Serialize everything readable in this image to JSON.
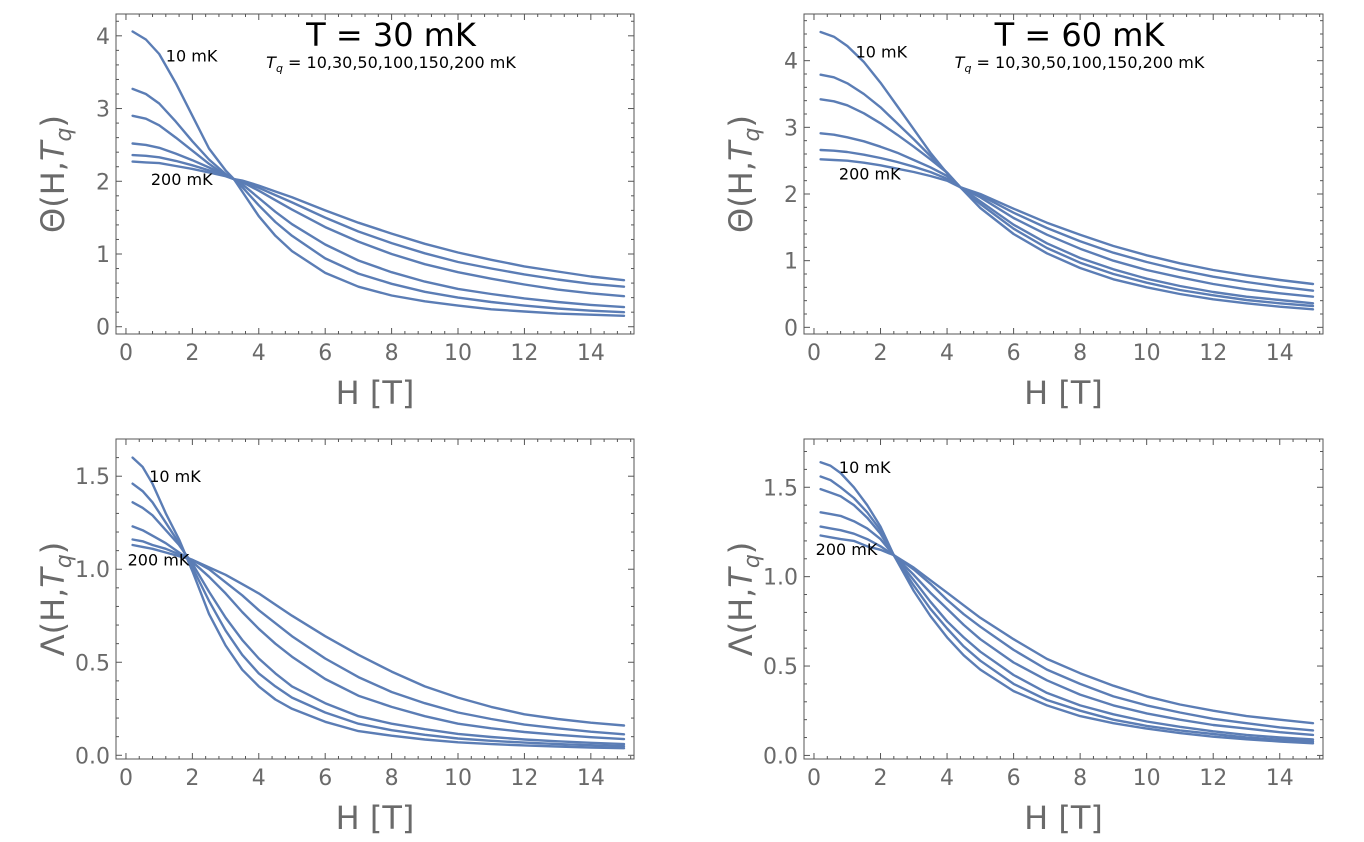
{
  "colors": {
    "series": "#5b7db5",
    "axis": "#555555",
    "tick_text": "#6a6a6a"
  },
  "chart_data": [
    {
      "type": "line",
      "title": "T = 30 mK",
      "subtitle_symbol": "T",
      "subtitle_sub": "q",
      "subtitle_rest": " = 10,30,50,100,150,200 mK",
      "xlabel": "H [T]",
      "ylabel": {
        "main": "Θ(H,",
        "italic": "T",
        "sub": "q",
        "close": ")"
      },
      "xlim": [
        -0.3,
        15.3
      ],
      "ylim": [
        -0.1,
        4.3
      ],
      "xticks": [
        0,
        2,
        4,
        6,
        8,
        10,
        12,
        14
      ],
      "yticks": [
        0,
        1,
        2,
        3,
        4
      ],
      "annotations": [
        {
          "text": "10 mK",
          "x": 1.2,
          "y": 3.65
        },
        {
          "text": "200 mK",
          "x": 0.75,
          "y": 1.95
        }
      ],
      "x": [
        0.2,
        0.6,
        1,
        1.5,
        2,
        2.5,
        3,
        3.25,
        3.5,
        4,
        4.5,
        5,
        6,
        7,
        8,
        9,
        10,
        11,
        12,
        13,
        14,
        15
      ],
      "series": [
        {
          "name": "10 mK",
          "values": [
            4.06,
            3.95,
            3.75,
            3.35,
            2.9,
            2.45,
            2.15,
            2.03,
            1.86,
            1.52,
            1.25,
            1.04,
            0.74,
            0.55,
            0.43,
            0.35,
            0.29,
            0.24,
            0.21,
            0.18,
            0.165,
            0.15
          ]
        },
        {
          "name": "30 mK",
          "values": [
            3.27,
            3.2,
            3.07,
            2.82,
            2.55,
            2.3,
            2.1,
            2.03,
            1.92,
            1.67,
            1.44,
            1.25,
            0.94,
            0.73,
            0.59,
            0.48,
            0.4,
            0.34,
            0.29,
            0.25,
            0.22,
            0.2
          ]
        },
        {
          "name": "50 mK",
          "values": [
            2.9,
            2.86,
            2.77,
            2.6,
            2.42,
            2.24,
            2.08,
            2.03,
            1.96,
            1.77,
            1.58,
            1.41,
            1.13,
            0.91,
            0.75,
            0.62,
            0.52,
            0.45,
            0.39,
            0.34,
            0.3,
            0.27
          ]
        },
        {
          "name": "100 mK",
          "values": [
            2.52,
            2.5,
            2.46,
            2.38,
            2.29,
            2.19,
            2.08,
            2.03,
            1.99,
            1.87,
            1.74,
            1.61,
            1.37,
            1.17,
            1,
            0.86,
            0.75,
            0.66,
            0.58,
            0.51,
            0.46,
            0.42
          ]
        },
        {
          "name": "150 mK",
          "values": [
            2.36,
            2.35,
            2.33,
            2.28,
            2.22,
            2.15,
            2.08,
            2.03,
            2,
            1.91,
            1.81,
            1.71,
            1.5,
            1.31,
            1.15,
            1.01,
            0.89,
            0.8,
            0.72,
            0.65,
            0.59,
            0.55
          ]
        },
        {
          "name": "200 mK",
          "values": [
            2.27,
            2.26,
            2.25,
            2.21,
            2.17,
            2.12,
            2.07,
            2.03,
            2.01,
            1.94,
            1.86,
            1.78,
            1.6,
            1.43,
            1.28,
            1.14,
            1.02,
            0.92,
            0.83,
            0.76,
            0.69,
            0.64
          ]
        }
      ]
    },
    {
      "type": "line",
      "title": "T = 60 mK",
      "subtitle_symbol": "T",
      "subtitle_sub": "q",
      "subtitle_rest": " = 10,30,50,100,150,200 mK",
      "xlabel": "H [T]",
      "ylabel": {
        "main": "Θ(H,",
        "italic": "T",
        "sub": "q",
        "close": ")"
      },
      "xlim": [
        -0.3,
        15.3
      ],
      "ylim": [
        -0.1,
        4.7
      ],
      "xticks": [
        0,
        2,
        4,
        6,
        8,
        10,
        12,
        14
      ],
      "yticks": [
        0,
        1,
        2,
        3,
        4
      ],
      "annotations": [
        {
          "text": "10 mK",
          "x": 1.25,
          "y": 4.05
        },
        {
          "text": "200 mK",
          "x": 0.75,
          "y": 2.22
        }
      ],
      "x": [
        0.2,
        0.6,
        1,
        1.5,
        2,
        2.5,
        3,
        3.5,
        4,
        4.4,
        5,
        6,
        7,
        8,
        9,
        10,
        11,
        12,
        13,
        14,
        15
      ],
      "series": [
        {
          "name": "10 mK",
          "values": [
            4.43,
            4.36,
            4.22,
            3.98,
            3.67,
            3.32,
            2.97,
            2.62,
            2.31,
            2.1,
            1.79,
            1.4,
            1.11,
            0.89,
            0.72,
            0.6,
            0.5,
            0.42,
            0.36,
            0.31,
            0.27
          ]
        },
        {
          "name": "30 mK",
          "values": [
            3.79,
            3.75,
            3.66,
            3.5,
            3.3,
            3.06,
            2.82,
            2.57,
            2.32,
            2.1,
            1.85,
            1.48,
            1.19,
            0.97,
            0.8,
            0.67,
            0.56,
            0.48,
            0.41,
            0.36,
            0.32
          ]
        },
        {
          "name": "50 mK",
          "values": [
            3.42,
            3.39,
            3.33,
            3.21,
            3.06,
            2.89,
            2.71,
            2.52,
            2.32,
            2.1,
            1.89,
            1.54,
            1.26,
            1.04,
            0.87,
            0.73,
            0.62,
            0.53,
            0.46,
            0.41,
            0.36
          ]
        },
        {
          "name": "100 mK",
          "values": [
            2.91,
            2.89,
            2.85,
            2.79,
            2.71,
            2.62,
            2.51,
            2.4,
            2.27,
            2.1,
            1.95,
            1.64,
            1.39,
            1.18,
            1,
            0.86,
            0.75,
            0.65,
            0.57,
            0.51,
            0.46
          ]
        },
        {
          "name": "150 mK",
          "values": [
            2.66,
            2.65,
            2.63,
            2.59,
            2.54,
            2.48,
            2.41,
            2.33,
            2.23,
            2.1,
            1.98,
            1.72,
            1.49,
            1.29,
            1.12,
            0.98,
            0.86,
            0.76,
            0.68,
            0.61,
            0.55
          ]
        },
        {
          "name": "200 mK",
          "values": [
            2.52,
            2.51,
            2.5,
            2.47,
            2.43,
            2.38,
            2.33,
            2.27,
            2.2,
            2.1,
            2,
            1.78,
            1.57,
            1.39,
            1.22,
            1.08,
            0.96,
            0.86,
            0.78,
            0.71,
            0.65
          ]
        }
      ]
    },
    {
      "type": "line",
      "xlabel": "H [T]",
      "ylabel": {
        "main": "Λ(H,",
        "italic": "T",
        "sub": "q",
        "close": ")"
      },
      "xlim": [
        -0.3,
        15.3
      ],
      "ylim": [
        -0.02,
        1.7
      ],
      "xticks": [
        0,
        2,
        4,
        6,
        8,
        10,
        12,
        14
      ],
      "yticks": [
        0.0,
        0.5,
        1.0,
        1.5
      ],
      "ytick_labels": [
        "0.0",
        "0.5",
        "1.0",
        "1.5"
      ],
      "annotations": [
        {
          "text": "10 mK",
          "x": 0.7,
          "y": 1.47
        },
        {
          "text": "200 mK",
          "x": 0.05,
          "y": 1.02
        }
      ],
      "x": [
        0.2,
        0.5,
        0.8,
        1.2,
        1.6,
        2,
        2.5,
        3,
        3.5,
        4,
        4.5,
        5,
        6,
        7,
        8,
        9,
        10,
        11,
        12,
        13,
        14,
        15
      ],
      "series": [
        {
          "name": "10 mK",
          "values": [
            1.6,
            1.55,
            1.46,
            1.3,
            1.16,
            0.99,
            0.76,
            0.59,
            0.46,
            0.37,
            0.3,
            0.25,
            0.18,
            0.13,
            0.105,
            0.085,
            0.07,
            0.06,
            0.053,
            0.047,
            0.042,
            0.038
          ]
        },
        {
          "name": "30 mK",
          "values": [
            1.46,
            1.42,
            1.36,
            1.25,
            1.14,
            1.01,
            0.83,
            0.67,
            0.54,
            0.44,
            0.37,
            0.31,
            0.23,
            0.17,
            0.135,
            0.11,
            0.09,
            0.078,
            0.068,
            0.06,
            0.054,
            0.049
          ]
        },
        {
          "name": "50 mK",
          "values": [
            1.36,
            1.33,
            1.29,
            1.21,
            1.13,
            1.03,
            0.88,
            0.74,
            0.62,
            0.52,
            0.44,
            0.37,
            0.28,
            0.21,
            0.17,
            0.14,
            0.115,
            0.098,
            0.085,
            0.075,
            0.067,
            0.06
          ]
        },
        {
          "name": "100 mK",
          "values": [
            1.23,
            1.21,
            1.18,
            1.14,
            1.09,
            1.04,
            0.96,
            0.87,
            0.77,
            0.68,
            0.6,
            0.53,
            0.41,
            0.32,
            0.26,
            0.21,
            0.17,
            0.145,
            0.125,
            0.11,
            0.097,
            0.087
          ]
        },
        {
          "name": "150 mK",
          "values": [
            1.16,
            1.15,
            1.13,
            1.11,
            1.08,
            1.05,
            1.0,
            0.93,
            0.86,
            0.78,
            0.71,
            0.64,
            0.52,
            0.42,
            0.34,
            0.28,
            0.23,
            0.195,
            0.165,
            0.145,
            0.127,
            0.113
          ]
        },
        {
          "name": "200 mK",
          "values": [
            1.13,
            1.12,
            1.11,
            1.09,
            1.07,
            1.05,
            1.01,
            0.97,
            0.92,
            0.87,
            0.81,
            0.75,
            0.64,
            0.54,
            0.45,
            0.37,
            0.31,
            0.26,
            0.22,
            0.195,
            0.175,
            0.16
          ]
        }
      ]
    },
    {
      "type": "line",
      "xlabel": "H [T]",
      "ylabel": {
        "main": "Λ(H,",
        "italic": "T",
        "sub": "q",
        "close": ")"
      },
      "xlim": [
        -0.3,
        15.3
      ],
      "ylim": [
        -0.02,
        1.77
      ],
      "xticks": [
        0,
        2,
        4,
        6,
        8,
        10,
        12,
        14
      ],
      "yticks": [
        0.0,
        0.5,
        1.0,
        1.5
      ],
      "ytick_labels": [
        "0.0",
        "0.5",
        "1.0",
        "1.5"
      ],
      "annotations": [
        {
          "text": "10 mK",
          "x": 0.75,
          "y": 1.58
        },
        {
          "text": "200 mK",
          "x": 0.05,
          "y": 1.12
        }
      ],
      "x": [
        0.2,
        0.5,
        0.8,
        1.2,
        1.6,
        2,
        2.4,
        3,
        3.5,
        4,
        4.5,
        5,
        6,
        7,
        8,
        9,
        10,
        11,
        12,
        13,
        14,
        15
      ],
      "series": [
        {
          "name": "10 mK",
          "values": [
            1.64,
            1.62,
            1.58,
            1.5,
            1.4,
            1.28,
            1.12,
            0.92,
            0.78,
            0.66,
            0.56,
            0.48,
            0.36,
            0.28,
            0.22,
            0.18,
            0.15,
            0.125,
            0.105,
            0.09,
            0.078,
            0.068
          ]
        },
        {
          "name": "30 mK",
          "values": [
            1.56,
            1.54,
            1.5,
            1.44,
            1.36,
            1.26,
            1.12,
            0.95,
            0.82,
            0.71,
            0.61,
            0.53,
            0.4,
            0.31,
            0.25,
            0.2,
            0.165,
            0.14,
            0.12,
            0.1,
            0.088,
            0.078
          ]
        },
        {
          "name": "50 mK",
          "values": [
            1.49,
            1.47,
            1.45,
            1.4,
            1.33,
            1.24,
            1.12,
            0.98,
            0.86,
            0.75,
            0.66,
            0.58,
            0.45,
            0.35,
            0.28,
            0.23,
            0.19,
            0.16,
            0.135,
            0.115,
            0.1,
            0.089
          ]
        },
        {
          "name": "100 mK",
          "values": [
            1.36,
            1.35,
            1.34,
            1.31,
            1.27,
            1.21,
            1.12,
            1.01,
            0.91,
            0.82,
            0.73,
            0.65,
            0.52,
            0.42,
            0.34,
            0.28,
            0.235,
            0.2,
            0.17,
            0.15,
            0.13,
            0.115
          ]
        },
        {
          "name": "150 mK",
          "values": [
            1.28,
            1.27,
            1.26,
            1.24,
            1.21,
            1.17,
            1.12,
            1.04,
            0.96,
            0.87,
            0.79,
            0.72,
            0.59,
            0.48,
            0.4,
            0.33,
            0.28,
            0.24,
            0.205,
            0.18,
            0.157,
            0.14
          ]
        },
        {
          "name": "200 mK",
          "values": [
            1.23,
            1.22,
            1.21,
            1.2,
            1.17,
            1.15,
            1.12,
            1.05,
            0.98,
            0.91,
            0.84,
            0.77,
            0.65,
            0.54,
            0.46,
            0.39,
            0.33,
            0.285,
            0.25,
            0.22,
            0.2,
            0.18
          ]
        }
      ]
    }
  ]
}
